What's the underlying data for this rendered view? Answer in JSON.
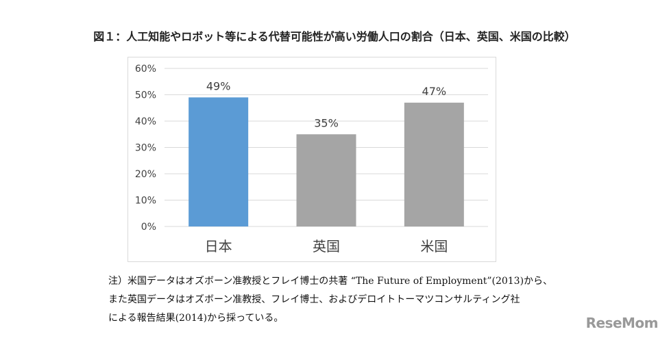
{
  "title": "図１：人工知能やロボット等による代替可能性が高い労働人口の割合（日本、英国、米国の比較）",
  "chart_data": {
    "type": "bar",
    "categories": [
      "日本",
      "英国",
      "米国"
    ],
    "values": [
      49,
      35,
      47
    ],
    "data_labels": [
      "49%",
      "35%",
      "47%"
    ],
    "ylim": [
      0,
      60
    ],
    "yticks": [
      "0%",
      "10%",
      "20%",
      "30%",
      "40%",
      "50%",
      "60%"
    ],
    "grid": true,
    "colors": [
      "#5b9bd5",
      "#a5a5a5",
      "#a5a5a5"
    ]
  },
  "notes": {
    "line1": "注）米国データはオズボーン准教授とフレイ博士の共著 “The Future of Employment”(2013)から、",
    "line2": "また英国データはオズボーン准教授、フレイ博士、およびデロイトトーマツコンサルティング社",
    "line3": "による報告結果(2014)から採っている。"
  },
  "logo_text": "ReseMom"
}
